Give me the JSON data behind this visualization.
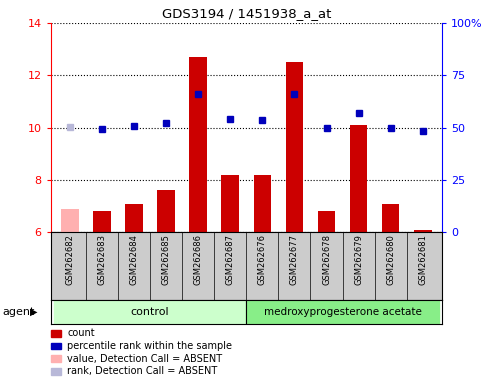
{
  "title": "GDS3194 / 1451938_a_at",
  "samples": [
    "GSM262682",
    "GSM262683",
    "GSM262684",
    "GSM262685",
    "GSM262686",
    "GSM262687",
    "GSM262676",
    "GSM262677",
    "GSM262678",
    "GSM262679",
    "GSM262680",
    "GSM262681"
  ],
  "bar_values": [
    6.9,
    6.8,
    7.1,
    7.6,
    12.7,
    8.2,
    8.2,
    12.5,
    6.8,
    10.1,
    7.1,
    6.1
  ],
  "bar_absent": [
    true,
    false,
    false,
    false,
    false,
    false,
    false,
    false,
    false,
    false,
    false,
    false
  ],
  "percentile_values": [
    50.5,
    49.5,
    51.0,
    52.0,
    66.0,
    54.0,
    53.5,
    66.0,
    50.0,
    57.0,
    50.0,
    48.5
  ],
  "percentile_absent": [
    true,
    false,
    false,
    false,
    false,
    false,
    false,
    false,
    false,
    false,
    false,
    false
  ],
  "ylim_left": [
    6,
    14
  ],
  "ylim_right": [
    0,
    100
  ],
  "yticks_left": [
    6,
    8,
    10,
    12,
    14
  ],
  "yticks_right": [
    0,
    25,
    50,
    75,
    100
  ],
  "ytick_labels_right": [
    "0",
    "25",
    "50",
    "75",
    "100%"
  ],
  "control_indices": [
    0,
    1,
    2,
    3,
    4,
    5
  ],
  "treatment_indices": [
    6,
    7,
    8,
    9,
    10,
    11
  ],
  "control_label": "control",
  "treatment_label": "medroxyprogesterone acetate",
  "agent_label": "agent",
  "bar_color": "#cc0000",
  "bar_absent_color": "#ffb0b0",
  "percentile_color": "#0000bb",
  "percentile_absent_color": "#b8b8d8",
  "control_bg": "#ccffcc",
  "treatment_bg": "#88ee88",
  "sample_area_bg": "#cccccc",
  "plot_bg": "#ffffff",
  "legend_items": [
    {
      "color": "#cc0000",
      "label": "count"
    },
    {
      "color": "#0000bb",
      "label": "percentile rank within the sample"
    },
    {
      "color": "#ffb0b0",
      "label": "value, Detection Call = ABSENT"
    },
    {
      "color": "#b8b8d8",
      "label": "rank, Detection Call = ABSENT"
    }
  ]
}
